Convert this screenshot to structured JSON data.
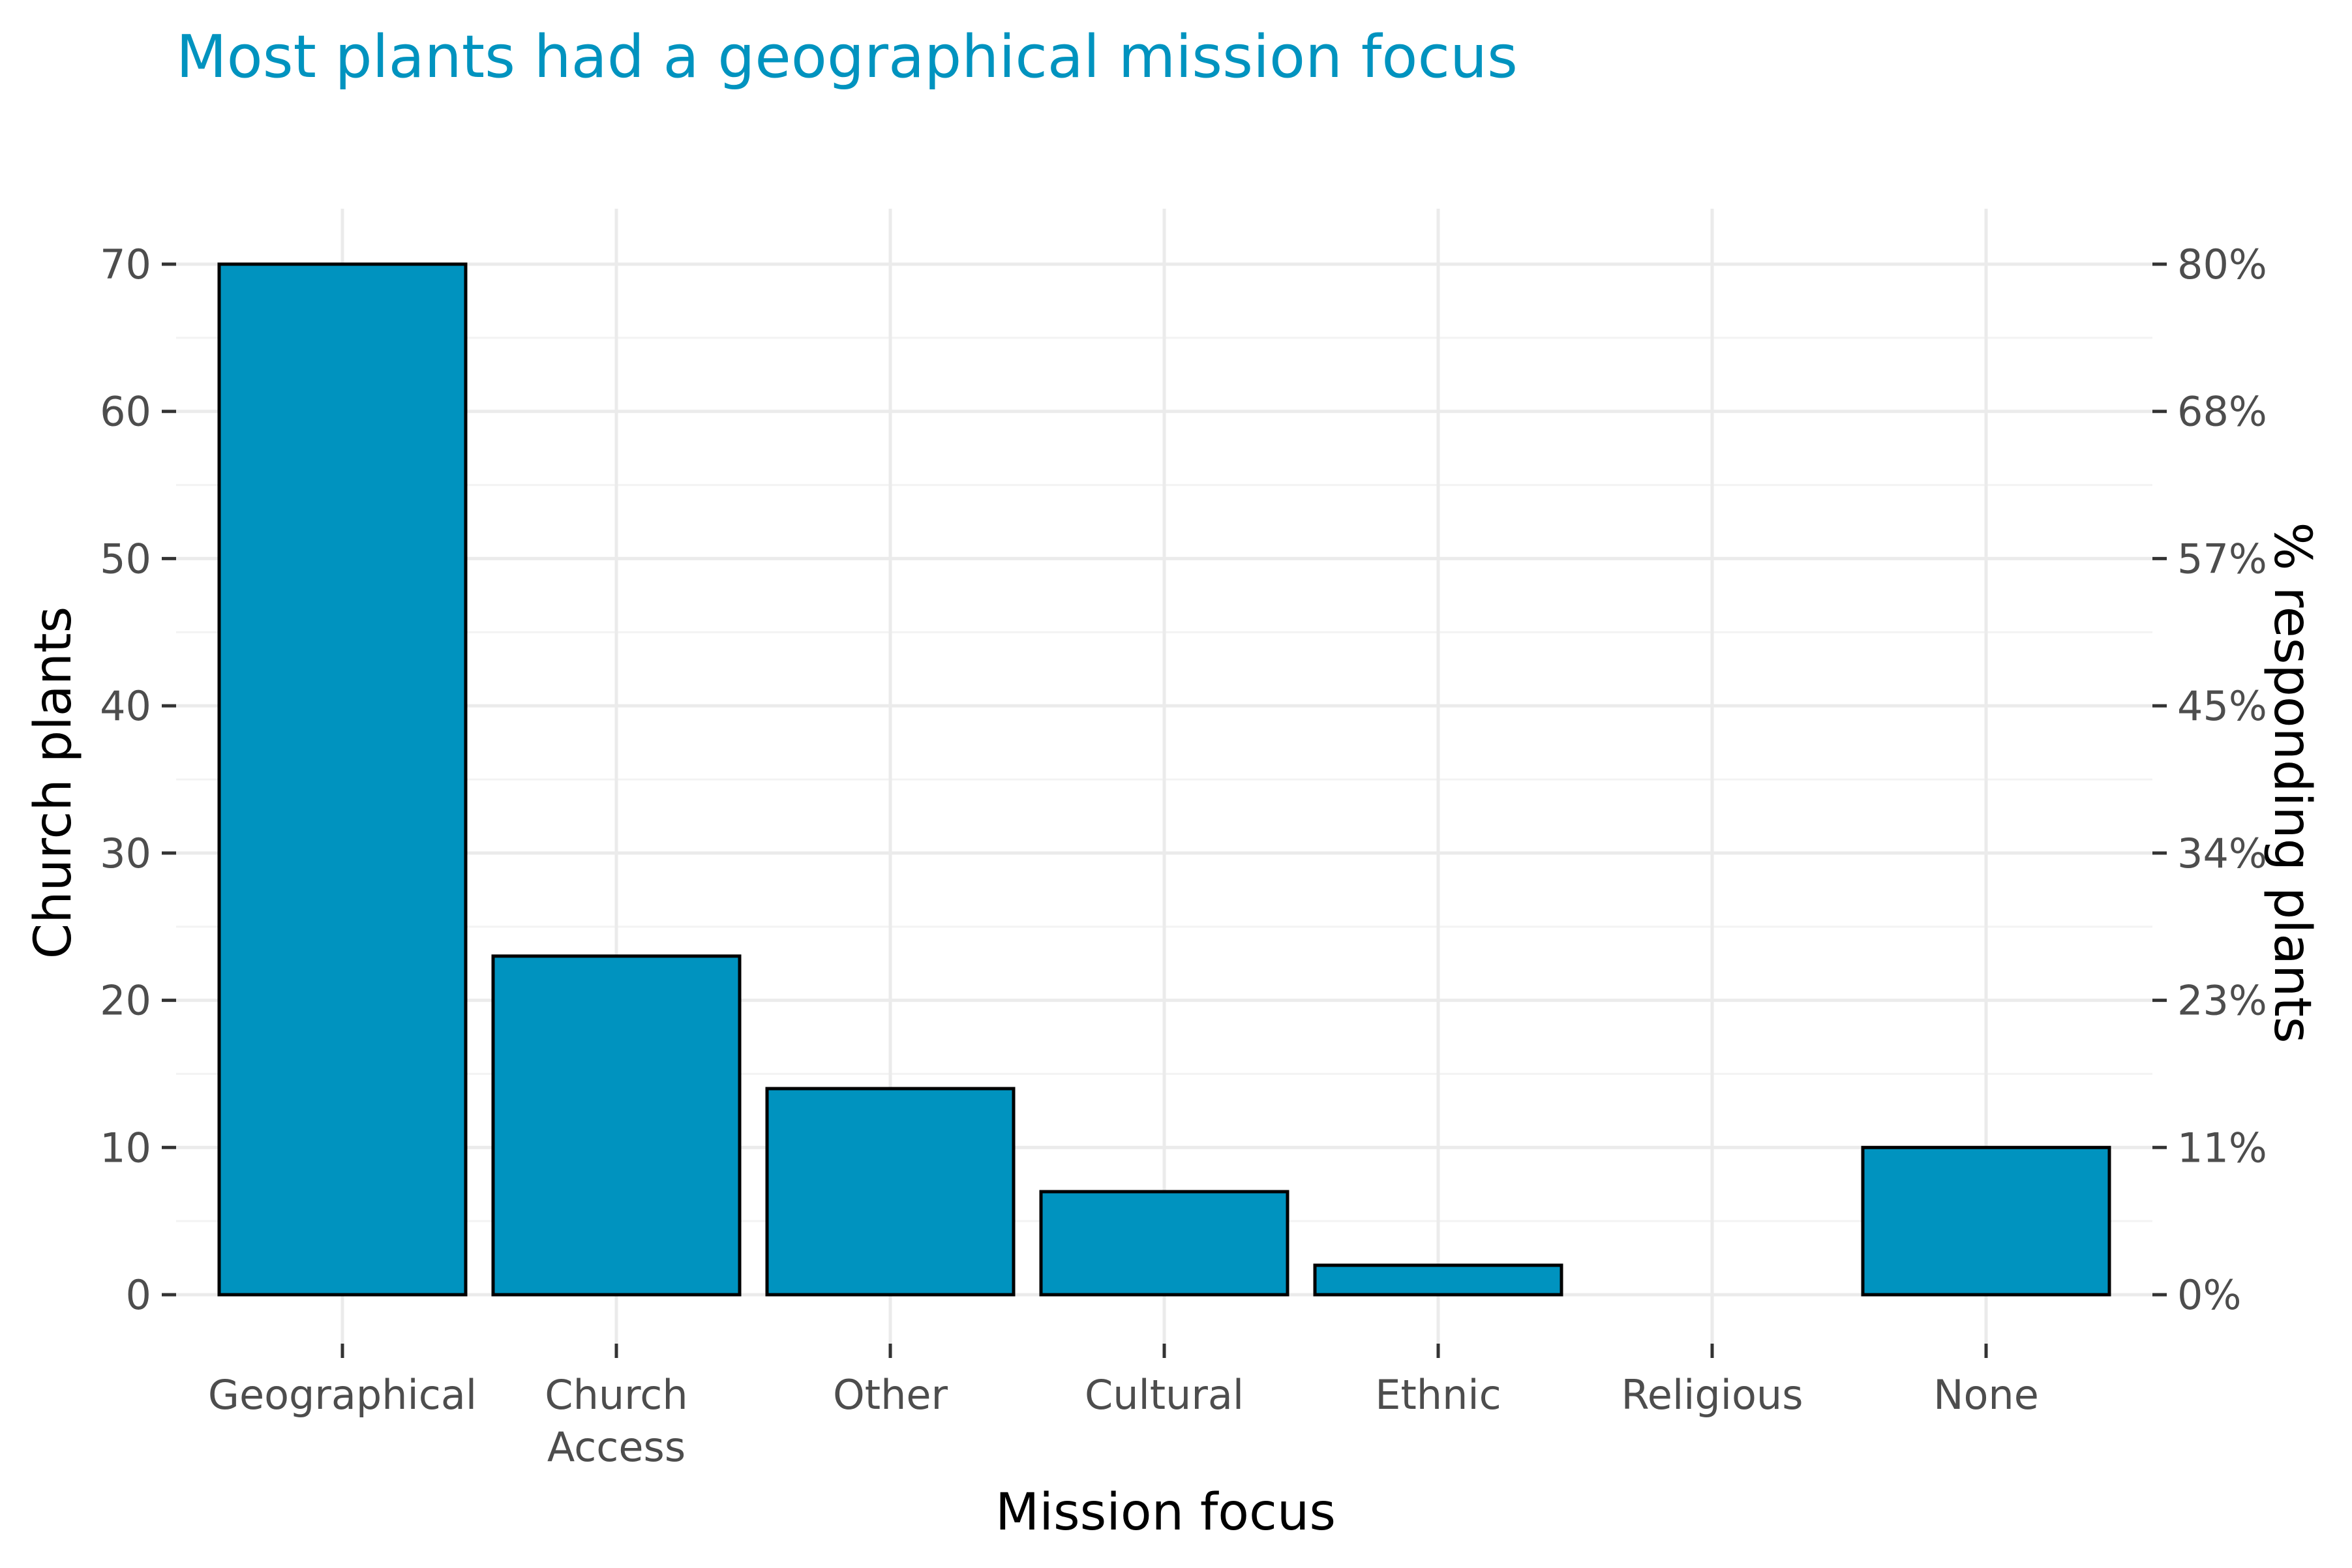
{
  "chart_data": {
    "type": "bar",
    "title": "Most plants had a geographical mission focus",
    "xlabel": "Mission focus",
    "ylabel": "Church plants",
    "y2label": "% responding plants",
    "categories": [
      "Geographical",
      "Church Access",
      "Other",
      "Cultural",
      "Ethnic",
      "Religious",
      "None"
    ],
    "category_lines": [
      [
        "Geographical"
      ],
      [
        "Church",
        "Access"
      ],
      [
        "Other"
      ],
      [
        "Cultural"
      ],
      [
        "Ethnic"
      ],
      [
        "Religious"
      ],
      [
        "None"
      ]
    ],
    "values": [
      70,
      23,
      14,
      7,
      2,
      0,
      10
    ],
    "ylim": [
      0,
      70
    ],
    "yticks": [
      0,
      10,
      20,
      30,
      40,
      50,
      60,
      70
    ],
    "y2ticks": [
      "0%",
      "11%",
      "23%",
      "34%",
      "45%",
      "57%",
      "68%",
      "80%"
    ],
    "bar_color": "#0093bf",
    "title_color": "#0093bf",
    "grid": true
  }
}
